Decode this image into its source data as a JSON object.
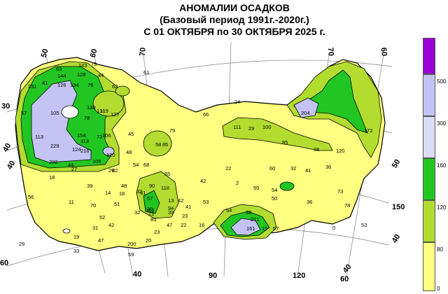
{
  "title": {
    "line1": "АНОМАЛИИ ОСАДКОВ",
    "line2": "(Базовый период 1991г.-2020г.)",
    "line3": "С 01 ОКТЯБРЯ  по  30 ОКТЯБРЯ 2025 г."
  },
  "legend": {
    "colors": [
      "#9b00d4",
      "#c3c3f5",
      "#dcdcf8",
      "#22c622",
      "#7fd83c",
      "#b2dd30",
      "#ffff80"
    ],
    "labels": [
      "500",
      "300",
      "160",
      "120",
      "80",
      "0"
    ]
  },
  "grid": {
    "longitudes": [
      "40",
      "50",
      "60",
      "70",
      "70",
      "60",
      "90",
      "120",
      "150",
      "40",
      "60",
      "40"
    ],
    "latitudes": [
      "30",
      "40",
      "50",
      "60",
      "40"
    ]
  },
  "stations": [
    "63",
    "143",
    "79",
    "61",
    "144",
    "128",
    "44",
    "231",
    "41",
    "126",
    "134",
    "76",
    "57",
    "62",
    "139",
    "131",
    "113",
    "78",
    "119",
    "127",
    "105",
    "154",
    "72",
    "113",
    "106",
    "229",
    "124",
    "216",
    "120",
    "232",
    "106",
    "44",
    "82",
    "48",
    "45",
    "58",
    "85",
    "79",
    "66",
    "24",
    "111",
    "29",
    "100",
    "204",
    "85",
    "38",
    "120",
    "36",
    "172",
    "27",
    "18",
    "56",
    "54",
    "68",
    "32",
    "48",
    "22",
    "42",
    "61",
    "60",
    "32",
    "41",
    "2",
    "55",
    "54",
    "50",
    "90",
    "118",
    "57",
    "10",
    "21",
    "14",
    "18",
    "42",
    "53",
    "51",
    "163",
    "94",
    "42",
    "33",
    "54",
    "38",
    "36",
    "73",
    "78",
    "11",
    "39",
    "70",
    "52",
    "23",
    "31",
    "29",
    "19",
    "33",
    "47",
    "83",
    "59",
    "20",
    "200",
    "271",
    "161",
    "15",
    "57",
    "0",
    "53",
    "29",
    "32",
    "16",
    "22",
    "47",
    "41",
    "55",
    "13",
    "23"
  ]
}
